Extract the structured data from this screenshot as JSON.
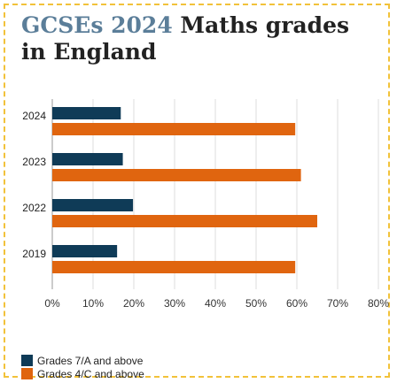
{
  "header": {
    "title_accent": "GCSEs 2024",
    "title_rest": " Maths grades in England"
  },
  "chart_data": {
    "type": "bar",
    "orientation": "horizontal",
    "categories": [
      "2024",
      "2023",
      "2022",
      "2019"
    ],
    "series": [
      {
        "name": "Grades 7/A and above",
        "color": "#0f3b57",
        "values": [
          16.8,
          17.3,
          19.8,
          15.9
        ]
      },
      {
        "name": "Grades 4/C and above",
        "color": "#e0650f",
        "values": [
          59.6,
          61.0,
          65.0,
          59.6
        ]
      }
    ],
    "xlim": [
      0,
      80
    ],
    "xticks": [
      "0%",
      "10%",
      "20%",
      "30%",
      "40%",
      "50%",
      "60%",
      "70%",
      "80%"
    ],
    "grid": true,
    "legend_position": "bottom-left"
  }
}
